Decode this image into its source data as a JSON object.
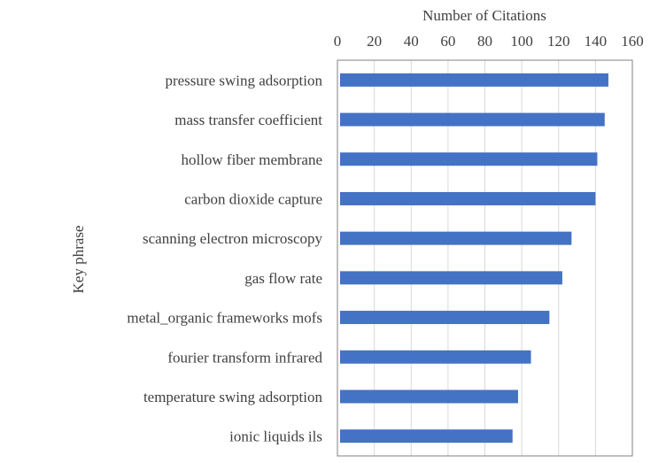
{
  "chart_data": {
    "type": "bar",
    "orientation": "horizontal",
    "xlabel": "Number of Citations",
    "ylabel": "Key phrase",
    "xlim": [
      0,
      160
    ],
    "xticks": [
      0,
      20,
      40,
      60,
      80,
      100,
      120,
      140,
      160
    ],
    "x_axis_position": "top",
    "grid": true,
    "legend": "none",
    "bar_color": "#4472C4",
    "categories": [
      "pressure swing adsorption",
      "mass transfer coefficient",
      "hollow fiber membrane",
      "carbon dioxide capture",
      "scanning electron microscopy",
      "gas flow rate",
      "metal_organic frameworks mofs",
      "fourier transform infrared",
      "temperature swing adsorption",
      "ionic liquids ils"
    ],
    "values": [
      147,
      145,
      141,
      140,
      127,
      122,
      115,
      105,
      98,
      95
    ]
  }
}
